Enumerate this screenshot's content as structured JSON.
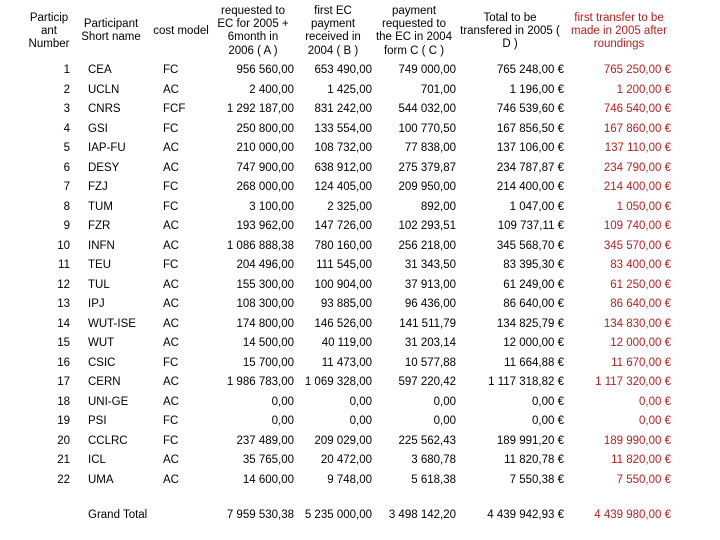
{
  "colors": {
    "accent_red": "#b22222",
    "text": "#000000",
    "background": "#ffffff"
  },
  "table": {
    "headers": [
      "Participant Number",
      "Participant Short name",
      "cost model",
      "requested to EC for 2005 + 6month in 2006 ( A )",
      "first EC payment received in 2004 ( B )",
      "payment requested to the EC in 2004 form C ( C )",
      "Total to be transfered in 2005 ( D )",
      "first transfer to be made in 2005 after roundings"
    ],
    "rows": [
      [
        "1",
        "CEA",
        "FC",
        "956 560,00",
        "653 490,00",
        "749 000,00",
        "765 248,00 €",
        "765 250,00 €"
      ],
      [
        "2",
        "UCLN",
        "AC",
        "2 400,00",
        "1 425,00",
        "701,00",
        "1 196,00 €",
        "1 200,00 €"
      ],
      [
        "3",
        "CNRS",
        "FCF",
        "1 292 187,00",
        "831 242,00",
        "544 032,00",
        "746 539,60 €",
        "746 540,00 €"
      ],
      [
        "4",
        "GSI",
        "FC",
        "250 800,00",
        "133 554,00",
        "100 770,50",
        "167 856,50 €",
        "167 860,00 €"
      ],
      [
        "5",
        "IAP-FU",
        "AC",
        "210 000,00",
        "108 732,00",
        "77 838,00",
        "137 106,00 €",
        "137 110,00 €"
      ],
      [
        "6",
        "DESY",
        "AC",
        "747 900,00",
        "638 912,00",
        "275 379,87",
        "234 787,87 €",
        "234 790,00 €"
      ],
      [
        "7",
        "FZJ",
        "FC",
        "268 000,00",
        "124 405,00",
        "209 950,00",
        "214 400,00 €",
        "214 400,00 €"
      ],
      [
        "8",
        "TUM",
        "FC",
        "3 100,00",
        "2 325,00",
        "892,00",
        "1 047,00 €",
        "1 050,00 €"
      ],
      [
        "9",
        "FZR",
        "AC",
        "193 962,00",
        "147 726,00",
        "102 293,51",
        "109 737,11 €",
        "109 740,00 €"
      ],
      [
        "10",
        "INFN",
        "AC",
        "1 086 888,38",
        "780 160,00",
        "256 218,00",
        "345 568,70 €",
        "345 570,00 €"
      ],
      [
        "11",
        "TEU",
        "FC",
        "204 496,00",
        "111 545,00",
        "31 343,50",
        "83 395,30 €",
        "83 400,00 €"
      ],
      [
        "12",
        "TUL",
        "AC",
        "155 300,00",
        "100 904,00",
        "37 913,00",
        "61 249,00 €",
        "61 250,00 €"
      ],
      [
        "13",
        "IPJ",
        "AC",
        "108 300,00",
        "93 885,00",
        "96 436,00",
        "86 640,00 €",
        "86 640,00 €"
      ],
      [
        "14",
        "WUT-ISE",
        "AC",
        "174 800,00",
        "146 526,00",
        "141 511,79",
        "134 825,79 €",
        "134 830,00 €"
      ],
      [
        "15",
        "WUT",
        "AC",
        "14 500,00",
        "40 119,00",
        "31 203,14",
        "12 000,00 €",
        "12 000,00 €"
      ],
      [
        "16",
        "CSIC",
        "FC",
        "15 700,00",
        "11 473,00",
        "10 577,88",
        "11 664,88 €",
        "11 670,00 €"
      ],
      [
        "17",
        "CERN",
        "AC",
        "1 986 783,00",
        "1 069 328,00",
        "597 220,42",
        "1 117 318,82 €",
        "1 117 320,00 €"
      ],
      [
        "18",
        "UNI-GE",
        "AC",
        "0,00",
        "0,00",
        "0,00",
        "0,00 €",
        "0,00 €"
      ],
      [
        "19",
        "PSI",
        "FC",
        "0,00",
        "0,00",
        "0,00",
        "0,00 €",
        "0,00 €"
      ],
      [
        "20",
        "CCLRC",
        "FC",
        "237 489,00",
        "209 029,00",
        "225 562,43",
        "189 991,20 €",
        "189 990,00 €"
      ],
      [
        "21",
        "ICL",
        "AC",
        "35 765,00",
        "20 472,00",
        "3 680,78",
        "11 820,78 €",
        "11 820,00 €"
      ],
      [
        "22",
        "UMA",
        "AC",
        "14 600,00",
        "9 748,00",
        "5 618,38",
        "7 550,38 €",
        "7 550,00 €"
      ]
    ],
    "grand_total": [
      "",
      "Grand Total",
      "",
      "7 959 530,38",
      "5 235 000,00",
      "3 498 142,20",
      "4 439 942,93 €",
      "4 439 980,00 €"
    ]
  }
}
